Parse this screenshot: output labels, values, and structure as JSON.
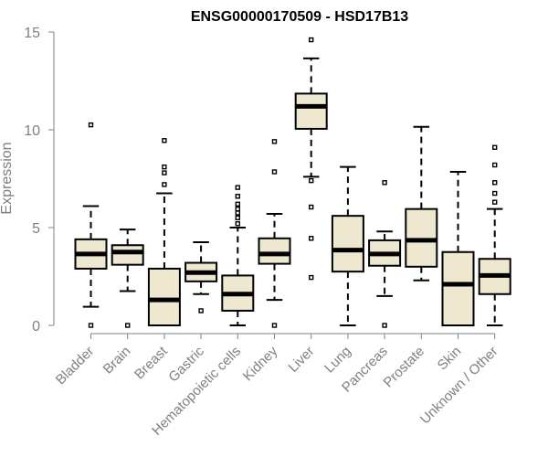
{
  "chart_data": {
    "type": "boxplot",
    "title": "ENSG00000170509 - HSD17B13",
    "xlabel": "",
    "ylabel": "Expression",
    "ylim": [
      0,
      15
    ],
    "yticks": [
      0,
      5,
      10,
      15
    ],
    "categories": [
      "Bladder",
      "Brain",
      "Breast",
      "Gastric",
      "Hematopoietic cells",
      "Kidney",
      "Liver",
      "Lung",
      "Pancreas",
      "Prostate",
      "Skin",
      "Unknown / Other"
    ],
    "box_color": "#efe8d1",
    "series": [
      {
        "name": "Bladder",
        "whisker_low": 0.95,
        "q1": 2.9,
        "median": 3.65,
        "q3": 4.4,
        "whisker_high": 6.1,
        "outliers": [
          0,
          10.25
        ]
      },
      {
        "name": "Brain",
        "whisker_low": 1.75,
        "q1": 3.1,
        "median": 3.75,
        "q3": 4.1,
        "whisker_high": 4.9,
        "outliers": [
          0
        ]
      },
      {
        "name": "Breast",
        "whisker_low": 0,
        "q1": 0,
        "median": 1.3,
        "q3": 2.9,
        "whisker_high": 6.75,
        "outliers": [
          7.2,
          7.8,
          8.1,
          9.45
        ]
      },
      {
        "name": "Gastric",
        "whisker_low": 1.6,
        "q1": 2.25,
        "median": 2.7,
        "q3": 3.2,
        "whisker_high": 4.25,
        "outliers": [
          0.75
        ]
      },
      {
        "name": "Hematopoietic cells",
        "whisker_low": 0,
        "q1": 0.75,
        "median": 1.6,
        "q3": 2.55,
        "whisker_high": 5.0,
        "outliers": [
          5.2,
          5.5,
          5.75,
          5.95,
          6.2,
          6.6,
          7.05
        ]
      },
      {
        "name": "Kidney",
        "whisker_low": 1.3,
        "q1": 3.15,
        "median": 3.65,
        "q3": 4.45,
        "whisker_high": 5.7,
        "outliers": [
          0,
          7.85,
          9.4
        ]
      },
      {
        "name": "Liver",
        "whisker_low": 7.6,
        "q1": 10.05,
        "median": 11.2,
        "q3": 11.85,
        "whisker_high": 13.65,
        "outliers": [
          2.45,
          4.45,
          6.05,
          7.4,
          14.6
        ]
      },
      {
        "name": "Lung",
        "whisker_low": 0,
        "q1": 2.75,
        "median": 3.85,
        "q3": 5.6,
        "whisker_high": 8.1,
        "outliers": []
      },
      {
        "name": "Pancreas",
        "whisker_low": 1.5,
        "q1": 3.05,
        "median": 3.65,
        "q3": 4.35,
        "whisker_high": 4.8,
        "outliers": [
          0,
          7.3
        ]
      },
      {
        "name": "Prostate",
        "whisker_low": 2.3,
        "q1": 3.0,
        "median": 4.35,
        "q3": 5.95,
        "whisker_high": 10.15,
        "outliers": []
      },
      {
        "name": "Skin",
        "whisker_low": 0,
        "q1": 0,
        "median": 2.1,
        "q3": 3.75,
        "whisker_high": 7.85,
        "outliers": []
      },
      {
        "name": "Unknown / Other",
        "whisker_low": 0,
        "q1": 1.6,
        "median": 2.55,
        "q3": 3.4,
        "whisker_high": 5.95,
        "outliers": [
          6.3,
          6.75,
          7.3,
          8.2,
          9.1
        ]
      }
    ]
  }
}
